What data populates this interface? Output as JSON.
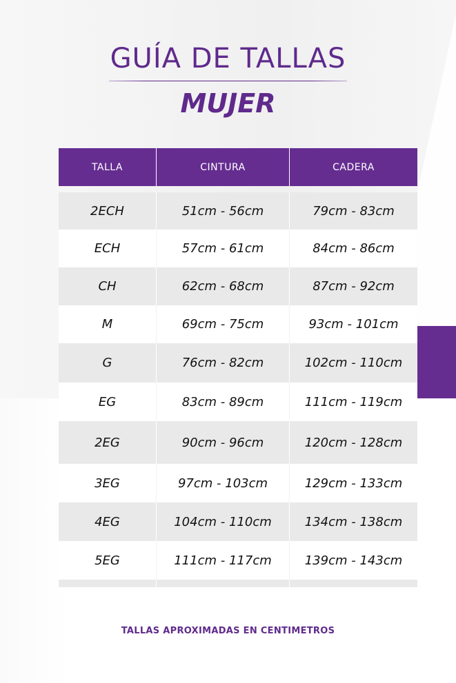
{
  "title": "GUÍA DE TALLAS",
  "subtitle": "MUJER",
  "colors": {
    "accent": "#662d91",
    "row_alt": "#e9e9e9"
  },
  "table": {
    "headers": [
      "TALLA",
      "CINTURA",
      "CADERA"
    ],
    "rows": [
      [
        "2ECH",
        "51cm - 56cm",
        "79cm - 83cm"
      ],
      [
        "ECH",
        "57cm - 61cm",
        "84cm - 86cm"
      ],
      [
        "CH",
        "62cm - 68cm",
        "87cm - 92cm"
      ],
      [
        "M",
        "69cm - 75cm",
        "93cm - 101cm"
      ],
      [
        "G",
        "76cm - 82cm",
        "102cm - 110cm"
      ],
      [
        "EG",
        "83cm - 89cm",
        "111cm - 119cm"
      ],
      [
        "2EG",
        "90cm - 96cm",
        "120cm - 128cm"
      ],
      [
        "3EG",
        "97cm - 103cm",
        "129cm - 133cm"
      ],
      [
        "4EG",
        "104cm - 110cm",
        "134cm - 138cm"
      ],
      [
        "5EG",
        "111cm - 117cm",
        "139cm - 143cm"
      ],
      [
        "",
        "",
        ""
      ]
    ]
  },
  "footer": "TALLAS APROXIMADAS EN CENTIMETROS"
}
